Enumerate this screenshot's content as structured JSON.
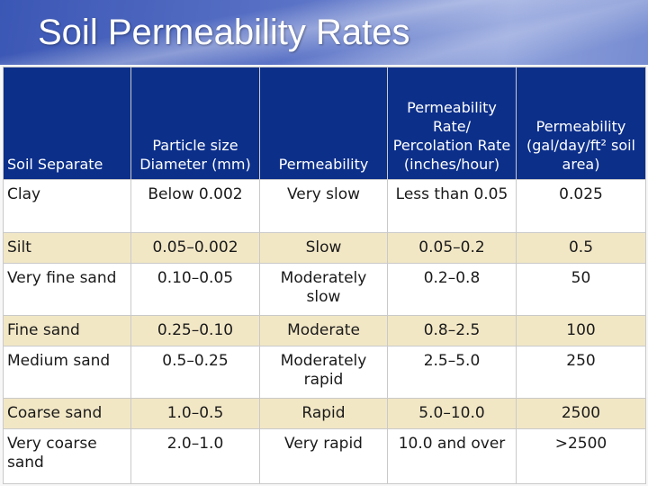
{
  "slide": {
    "title": "Soil Permeability Rates"
  },
  "table": {
    "headers": [
      "Soil Separate",
      "Particle size Diameter (mm)",
      "Permeability",
      "Permeability Rate/ Percolation Rate (inches/hour)",
      "Permeability (gal/day/ft² soil area)"
    ],
    "rows": [
      [
        "Clay",
        "Below 0.002",
        "Very slow",
        "Less than 0.05",
        "0.025"
      ],
      [
        "Silt",
        "0.05–0.002",
        "Slow",
        "0.05–0.2",
        "0.5"
      ],
      [
        "Very fine sand",
        "0.10–0.05",
        "Moderately slow",
        "0.2–0.8",
        "50"
      ],
      [
        "Fine sand",
        "0.25–0.10",
        "Moderate",
        "0.8–2.5",
        "100"
      ],
      [
        "Medium sand",
        "0.5–0.25",
        "Moderately rapid",
        "2.5–5.0",
        "250"
      ],
      [
        "Coarse sand",
        "1.0–0.5",
        "Rapid",
        "5.0–10.0",
        "2500"
      ],
      [
        "Very coarse sand",
        "2.0–1.0",
        "Very rapid",
        "10.0 and over",
        ">2500"
      ]
    ]
  },
  "colors": {
    "header_bg": "#0c2f8a",
    "row_white": "#ffffff",
    "row_tan": "#f2e7c5",
    "slide_bg": "#4a66bf"
  }
}
